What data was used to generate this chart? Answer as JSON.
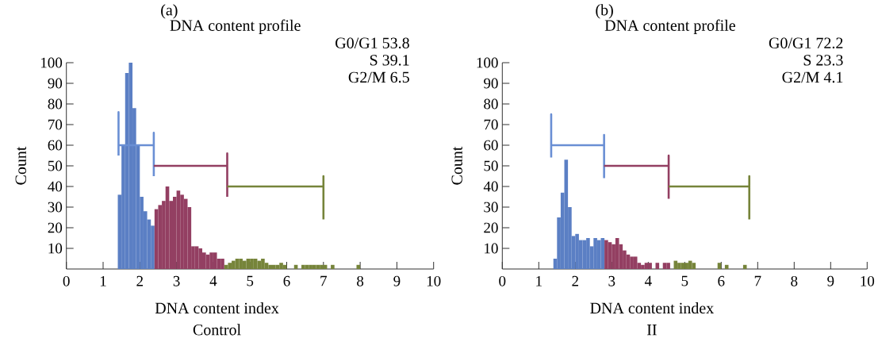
{
  "chart_data": [
    {
      "type": "histogram",
      "title": "(a)",
      "subtitle": "DNA content profile",
      "xlabel": "DNA content index",
      "ylabel": "Count",
      "annotations": [
        "G0/G1 53.8",
        "S 39.1",
        "G2/M 6.5",
        "Control"
      ],
      "xlim": [
        0,
        10
      ],
      "ylim": [
        0,
        100
      ],
      "xticks": [
        0,
        1,
        2,
        3,
        4,
        5,
        6,
        7,
        8,
        9,
        10
      ],
      "yticks": [
        10,
        20,
        30,
        40,
        50,
        60,
        70,
        80,
        90,
        100
      ],
      "series": [
        {
          "type": "histogram",
          "color": "#5b7fc4",
          "bins": [
            1.4,
            1.5,
            1.6,
            1.7,
            1.8,
            1.9,
            2.0,
            2.1,
            2.2,
            2.3,
            2.4
          ],
          "values": [
            36,
            60,
            95,
            100,
            78,
            60,
            35,
            28,
            24,
            21
          ]
        },
        {
          "type": "histogram",
          "color": "#933f62",
          "bins": [
            2.4,
            2.5,
            2.6,
            2.7,
            2.8,
            2.9,
            3.0,
            3.1,
            3.2,
            3.3,
            3.4,
            3.5,
            3.6,
            3.7,
            3.8,
            3.9,
            4.0,
            4.1,
            4.2,
            4.3
          ],
          "values": [
            29,
            31,
            33,
            40,
            33,
            35,
            38,
            36,
            34,
            30,
            11,
            11,
            10,
            8,
            7,
            8,
            8,
            5,
            5
          ]
        },
        {
          "type": "histogram",
          "color": "#76843a",
          "bins": [
            4.3,
            4.4,
            4.5,
            4.6,
            4.7,
            4.8,
            4.9,
            5.0,
            5.1,
            5.2,
            5.3,
            5.4,
            5.5,
            5.6,
            5.7,
            5.8,
            5.9,
            6.0,
            6.1,
            6.2,
            6.3,
            6.4,
            6.5,
            6.6,
            6.7,
            6.8,
            6.9,
            7.0,
            7.1,
            7.2,
            7.3,
            7.4,
            7.5,
            7.6,
            7.7,
            7.8,
            7.9,
            8.0
          ],
          "values": [
            2,
            3,
            4,
            5,
            5,
            4,
            5,
            5,
            5,
            4,
            5,
            3,
            2,
            2,
            2,
            3,
            2,
            0,
            0,
            2,
            0,
            2,
            2,
            2,
            2,
            2,
            2,
            2,
            0,
            2,
            0,
            0,
            0,
            0,
            0,
            0,
            2
          ]
        },
        {
          "type": "line",
          "color": "#6a8fd4",
          "x": [
            1.42,
            1.42,
            1.42,
            2.38,
            2.38,
            2.38
          ],
          "values": [
            55,
            76,
            60,
            60,
            66,
            45
          ]
        },
        {
          "type": "line",
          "color": "#933f62",
          "x": [
            2.38,
            4.38,
            4.38,
            4.38
          ],
          "values": [
            50,
            50,
            56,
            35
          ]
        },
        {
          "type": "line",
          "color": "#76843a",
          "x": [
            4.38,
            7.0,
            7.0,
            7.0
          ],
          "values": [
            40,
            40,
            45,
            24
          ]
        }
      ]
    },
    {
      "type": "histogram",
      "title": "(b)",
      "subtitle": "DNA content profile",
      "xlabel": "DNA content index",
      "ylabel": "Count",
      "annotations": [
        "G0/G1 72.2",
        "S 23.3",
        "G2/M 4.1",
        "II"
      ],
      "xlim": [
        0,
        10
      ],
      "ylim": [
        0,
        100
      ],
      "xticks": [
        0,
        1,
        2,
        3,
        4,
        5,
        6,
        7,
        8,
        9,
        10
      ],
      "yticks": [
        10,
        20,
        30,
        40,
        50,
        60,
        70,
        80,
        90,
        100
      ],
      "series": [
        {
          "type": "histogram",
          "color": "#5b7fc4",
          "bins": [
            1.4,
            1.5,
            1.6,
            1.7,
            1.8,
            1.9,
            2.0,
            2.1,
            2.2,
            2.3,
            2.4,
            2.5,
            2.6,
            2.7,
            2.8
          ],
          "values": [
            5,
            25,
            37,
            53,
            30,
            16,
            17,
            14,
            14,
            15,
            11,
            15,
            14,
            15
          ]
        },
        {
          "type": "histogram",
          "color": "#933f62",
          "bins": [
            2.8,
            2.9,
            3.0,
            3.1,
            3.2,
            3.3,
            3.4,
            3.5,
            3.6,
            3.7,
            3.8,
            3.9,
            4.0,
            4.1,
            4.2,
            4.3,
            4.4,
            4.5,
            4.6
          ],
          "values": [
            14,
            13,
            12,
            15,
            12,
            9,
            7,
            6,
            6,
            3,
            2,
            3,
            3,
            0,
            3,
            0,
            3,
            3
          ]
        },
        {
          "type": "histogram",
          "color": "#76843a",
          "bins": [
            4.6,
            4.7,
            4.8,
            4.9,
            5.0,
            5.1,
            5.2,
            5.3,
            5.4,
            5.5,
            5.6,
            5.7,
            5.8,
            5.9,
            6.0,
            6.1,
            6.2,
            6.3,
            6.4,
            6.5,
            6.6,
            6.7
          ],
          "values": [
            0,
            4,
            3,
            3,
            3,
            4,
            3,
            0,
            0,
            0,
            0,
            0,
            0,
            3,
            0,
            2,
            0,
            0,
            0,
            0,
            2
          ]
        },
        {
          "type": "line",
          "color": "#6a8fd4",
          "x": [
            1.34,
            1.34,
            1.34,
            2.79,
            2.79,
            2.79
          ],
          "values": [
            54,
            75,
            60,
            60,
            65,
            44
          ]
        },
        {
          "type": "line",
          "color": "#933f62",
          "x": [
            2.79,
            4.56,
            4.56,
            4.56
          ],
          "values": [
            50,
            50,
            55,
            34
          ]
        },
        {
          "type": "line",
          "color": "#76843a",
          "x": [
            4.56,
            6.77,
            6.77,
            6.77
          ],
          "values": [
            40,
            40,
            45,
            24
          ]
        }
      ]
    }
  ]
}
